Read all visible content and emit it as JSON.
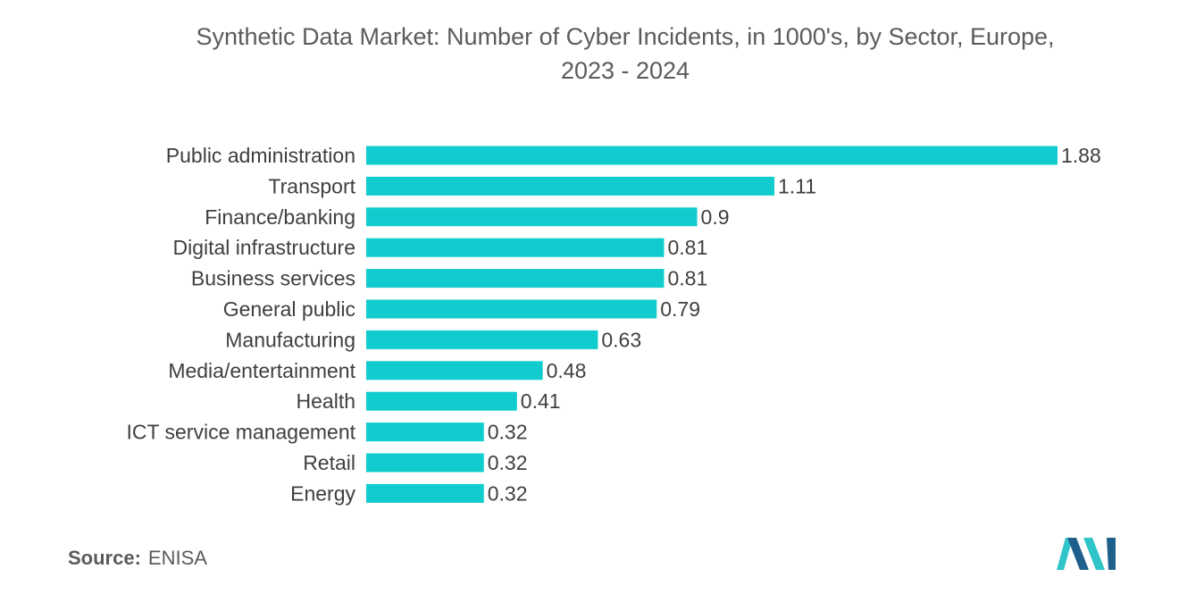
{
  "colors": {
    "bar": "#11ccce",
    "text": "#3f3f3f",
    "title": "#5b5b5b",
    "logo_dark": "#1f5f8b",
    "logo_light": "#2fc4c8"
  },
  "source": {
    "label": "Source:",
    "value": "ENISA"
  },
  "logo": {
    "icon": "mordor-intelligence-logo-icon"
  },
  "chart_data": {
    "type": "bar",
    "orientation": "horizontal",
    "title": "Synthetic Data Market: Number of Cyber Incidents, in 1000's, by Sector, Europe,",
    "subtitle": "2023 - 2024",
    "xlabel": "",
    "ylabel": "",
    "xlim": [
      0,
      1.88
    ],
    "grid": false,
    "categories": [
      "Public administration",
      "Transport",
      "Finance/banking",
      "Digital infrastructure",
      "Business services",
      "General public",
      "Manufacturing",
      "Media/entertainment",
      "Health",
      "ICT service management",
      "Retail",
      "Energy"
    ],
    "values": [
      1.88,
      1.11,
      0.9,
      0.81,
      0.81,
      0.79,
      0.63,
      0.48,
      0.41,
      0.32,
      0.32,
      0.32
    ],
    "value_labels": [
      "1.88",
      "1.11",
      "0.9",
      "0.81",
      "0.81",
      "0.79",
      "0.63",
      "0.48",
      "0.41",
      "0.32",
      "0.32",
      "0.32"
    ]
  }
}
